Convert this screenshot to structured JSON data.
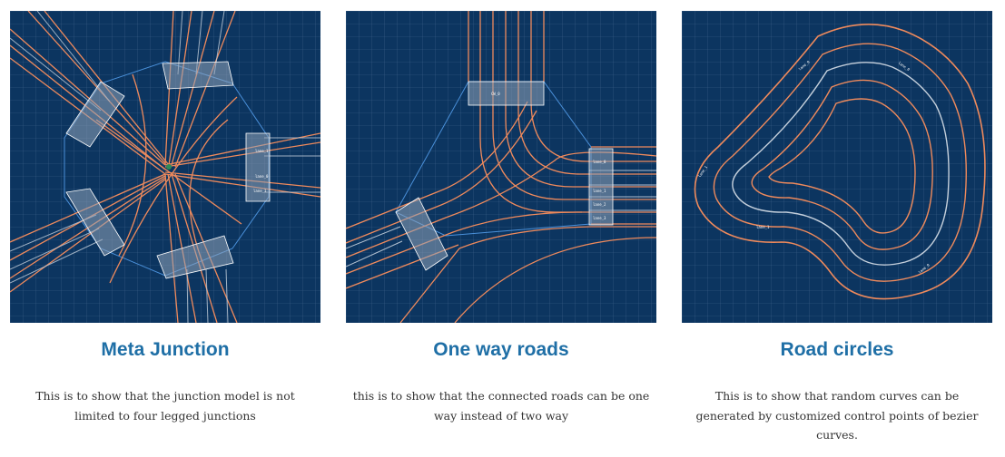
{
  "colors": {
    "background": "#0c3560",
    "grid": "#3d6189",
    "road_edge": "#ef8a5c",
    "lane_center": "#c4cfdb",
    "junction_outline": "#4a90d9",
    "heading": "#1f6fa6",
    "body_text": "#333333"
  },
  "cards": [
    {
      "title": "Meta Junction",
      "description_line1": "This is to show that the junction model is not",
      "description_line2": "limited to four legged junctions",
      "description_line3": "",
      "image_icon": "meta-junction-illustration"
    },
    {
      "title": "One way roads",
      "description_line1": "this is to show that the connected roads can be one",
      "description_line2": "way instead of two way",
      "description_line3": "",
      "image_icon": "one-way-roads-illustration"
    },
    {
      "title": "Road circles",
      "description_line1": "This is to show that random curves can be",
      "description_line2": "generated by customized control points of bezier",
      "description_line3": "curves.",
      "image_icon": "road-circles-illustration"
    }
  ]
}
